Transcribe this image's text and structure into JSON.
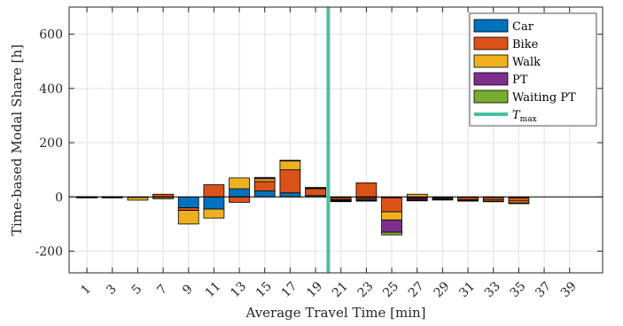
{
  "chart_data": {
    "type": "bar",
    "stacked": true,
    "xlabel": "Average Travel Time [min]",
    "ylabel": "Time-based Modal Share [h]",
    "xlim": [
      -0.4,
      41.6
    ],
    "ylim": [
      -280,
      700
    ],
    "y_ticks": [
      -200,
      0,
      200,
      400,
      600
    ],
    "y_tick_labels": [
      "-200",
      "0",
      "200",
      "400",
      "600"
    ],
    "x_ticks": [
      1,
      3,
      5,
      7,
      9,
      11,
      13,
      15,
      17,
      19,
      21,
      23,
      25,
      27,
      29,
      31,
      33,
      35,
      37,
      39
    ],
    "x_tick_labels": [
      "1",
      "3",
      "5",
      "7",
      "9",
      "11",
      "13",
      "15",
      "17",
      "19",
      "21",
      "23",
      "25",
      "27",
      "29",
      "31",
      "33",
      "35",
      "37",
      "39"
    ],
    "grid": true,
    "legend_position": "top-right",
    "x": [
      1,
      3,
      5,
      7,
      9,
      11,
      13,
      15,
      17,
      19,
      21,
      23,
      25,
      27,
      29,
      31,
      33,
      35,
      37,
      39
    ],
    "series": [
      {
        "name": "Car",
        "color": "#0072BD",
        "values": [
          -1,
          -1,
          -1,
          -2,
          -40,
          -45,
          30,
          22,
          15,
          5,
          -3,
          -3,
          -3,
          -3,
          -2,
          -2,
          -2,
          -3,
          0,
          0
        ]
      },
      {
        "name": "Bike",
        "color": "#D95319",
        "values": [
          1,
          1,
          -1,
          10,
          -10,
          45,
          -20,
          35,
          85,
          25,
          -7,
          52,
          -52,
          -4,
          -4,
          -8,
          -8,
          -12,
          0,
          0
        ]
      },
      {
        "name": "Walk",
        "color": "#EDB120",
        "values": [
          -1,
          -1,
          -10,
          -5,
          -50,
          -33,
          40,
          10,
          33,
          3,
          -2,
          -5,
          -30,
          10,
          -3,
          -3,
          -5,
          -7,
          0,
          0
        ]
      },
      {
        "name": "PT",
        "color": "#7E2F8E",
        "values": [
          0,
          0,
          0,
          0,
          0,
          0,
          0,
          5,
          2,
          2,
          -3,
          -5,
          -45,
          -5,
          -2,
          -2,
          -3,
          -3,
          0,
          0
        ]
      },
      {
        "name": "Waiting PT",
        "color": "#77AC30",
        "values": [
          0,
          0,
          0,
          0,
          0,
          0,
          0,
          0,
          0,
          0,
          -2,
          -2,
          -10,
          -2,
          0,
          0,
          0,
          0,
          0,
          0
        ]
      }
    ],
    "vline": {
      "name": "T_max",
      "x": 20,
      "color": "#4DBE9E"
    },
    "legend_labels": {
      "car": "Car",
      "bike": "Bike",
      "walk": "Walk",
      "pt": "PT",
      "waiting_pt": "Waiting PT",
      "tmax_main": "T",
      "tmax_sub": "max"
    }
  }
}
